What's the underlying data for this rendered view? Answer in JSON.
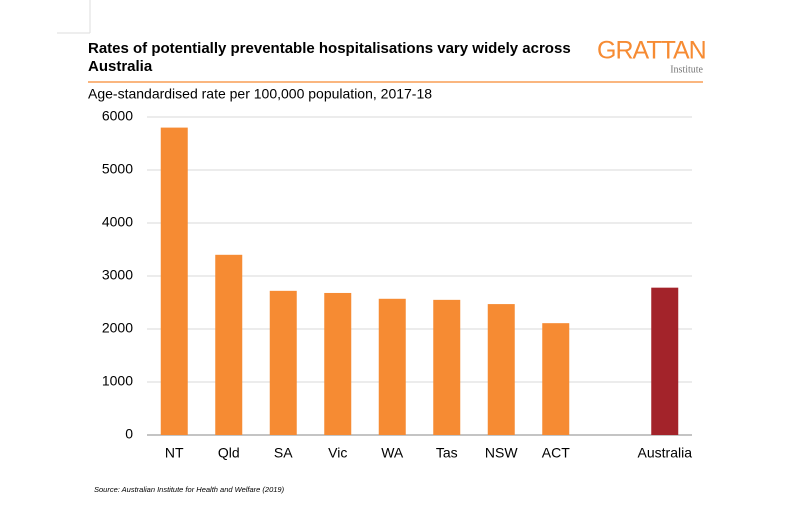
{
  "chart_data": {
    "type": "bar",
    "title": "Rates of potentially preventable hospitalisations vary widely across Australia",
    "subtitle": "Age-standardised rate per 100,000 population, 2017-18",
    "brand": "GRATTAN",
    "brand_sub": "Institute",
    "source": "Source: Australian Institute for Health and Welfare (2019)",
    "categories": [
      "NT",
      "Qld",
      "SA",
      "Vic",
      "WA",
      "Tas",
      "NSW",
      "ACT",
      null,
      "Australia"
    ],
    "values": [
      5800,
      3400,
      2720,
      2680,
      2570,
      2550,
      2470,
      2110,
      null,
      2780
    ],
    "colors": [
      "#f68b33",
      "#f68b33",
      "#f68b33",
      "#f68b33",
      "#f68b33",
      "#f68b33",
      "#f68b33",
      "#f68b33",
      null,
      "#a3232a"
    ],
    "ylim": [
      0,
      6000
    ],
    "yticks": [
      0,
      1000,
      2000,
      3000,
      4000,
      5000,
      6000
    ],
    "grid": true
  }
}
